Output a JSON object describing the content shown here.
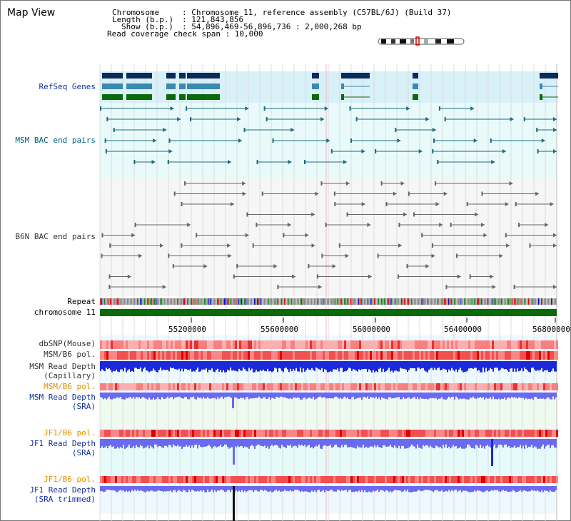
{
  "title": "Map View",
  "info": {
    "chromosome_key": "Chromosome",
    "chromosome_val": ": Chromosome 11, reference assembly (C57BL/6J) (Build 37)",
    "length_key": "Length (b.p.)",
    "length_val": ": 121,843,856",
    "show_key": "Show (b.p.)",
    "show_val": ": 54,896,469-56,896,736 : 2,000,268 bp",
    "coverage": "Read coverage check span : 10,000"
  },
  "tracks": {
    "refseq": "RefSeq Genes",
    "msm_bac": "MSM BAC end pairs",
    "b6n_bac": "B6N BAC end pairs",
    "repeat": "Repeat",
    "chromosome": "chromosome 11",
    "dbsnp": "dbSNP(Mouse)",
    "msm_b6_pol": "MSM/B6 pol.",
    "msm_depth_cap_1": "MSM Read Depth",
    "msm_depth_cap_2": "(Capillary)",
    "msm_b6_pol2": "MSM/B6 pol.",
    "msm_depth_sra_1": "MSM Read Depth",
    "msm_depth_sra_2": "(SRA)",
    "jf1_pol": "JF1/B6 pol.",
    "jf1_depth_1": "JF1 Read Depth",
    "jf1_depth_2": "(SRA)",
    "jf1_pol2": "JF1/B6 pol.",
    "jf1_trim_1": "JF1 Read Depth",
    "jf1_trim_2": "(SRA trimmed)"
  },
  "axis": {
    "ticks": [
      "55200000",
      "55600000",
      "56000000",
      "56400000",
      "56800000"
    ]
  },
  "colors": {
    "refseq_dark": "#0a2a5a",
    "refseq_mid": "#3a8ab0",
    "refseq_green": "#0a6a0a",
    "msm_bac": "#1a6a80",
    "b6n_bac": "#666666",
    "chromosome_bar": "#0a6a0a",
    "depth_blue": "#1a2ad8",
    "depth_light": "#6a6af0"
  }
}
